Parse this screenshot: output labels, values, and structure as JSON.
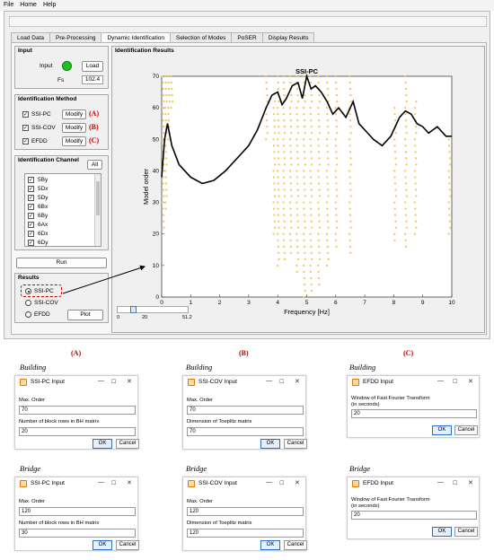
{
  "menu": [
    "File",
    "Home",
    "Help"
  ],
  "tabs": [
    "Load Data",
    "Pre-Processing",
    "Dynamic Identification",
    "Selection of Modes",
    "PoSER",
    "Display Results"
  ],
  "active_tab": 2,
  "input_panel": {
    "title": "Input",
    "input_label": "Input",
    "load_label": "Load",
    "fs_label": "Fs",
    "fs_value": "102.4",
    "status_color": "#22c022"
  },
  "method_panel": {
    "title": "Identification Method",
    "methods": [
      {
        "label": "SSI-PC",
        "modify": "Modify",
        "tag": "(A)"
      },
      {
        "label": "SSI-COV",
        "modify": "Modify",
        "tag": "(B)"
      },
      {
        "label": "EFDD",
        "modify": "Modify",
        "tag": "(C)"
      }
    ]
  },
  "channel_panel": {
    "title": "Identification Channel",
    "all_label": "All",
    "channels": [
      "5By",
      "5Dx",
      "5Dy",
      "6Bx",
      "6By",
      "6Ax",
      "6Dx",
      "6Dy"
    ]
  },
  "run_label": "Run",
  "results_panel": {
    "title": "Results",
    "options": [
      "SSI-PC",
      "SSI-COV",
      "EFDD"
    ],
    "plot_label": "Plot"
  },
  "slider": {
    "min": "0",
    "mid": "20",
    "max": "51.2",
    "value_fraction": 0.19
  },
  "results_area": {
    "title": "Identification Results"
  },
  "chart_data": {
    "type": "scatter",
    "title": "SSI-PC",
    "xlabel": "Frequency [Hz]",
    "ylabel": "Model order",
    "xlim": [
      0,
      10
    ],
    "ylim": [
      0,
      70
    ],
    "xticks": [
      "0",
      "1",
      "2",
      "3",
      "4",
      "5",
      "6",
      "7",
      "8",
      "9",
      "10"
    ],
    "yticks": [
      "0",
      "10",
      "20",
      "30",
      "40",
      "50",
      "60",
      "70"
    ],
    "point_color": "#f5c65a",
    "line_color": "#000000",
    "stable_columns": [
      {
        "x": 0.05,
        "from": 22,
        "to": 70
      },
      {
        "x": 0.15,
        "from": 28,
        "to": 70
      },
      {
        "x": 0.25,
        "from": 50,
        "to": 70
      },
      {
        "x": 0.35,
        "from": 60,
        "to": 70
      },
      {
        "x": 3.62,
        "from": 50,
        "to": 70
      },
      {
        "x": 3.88,
        "from": 20,
        "to": 62
      },
      {
        "x": 4.02,
        "from": 10,
        "to": 70
      },
      {
        "x": 4.22,
        "from": 12,
        "to": 70
      },
      {
        "x": 4.45,
        "from": 14,
        "to": 70
      },
      {
        "x": 4.68,
        "from": 8,
        "to": 70
      },
      {
        "x": 4.92,
        "from": 0,
        "to": 70
      },
      {
        "x": 5.15,
        "from": 2,
        "to": 70
      },
      {
        "x": 5.42,
        "from": 4,
        "to": 70
      },
      {
        "x": 5.72,
        "from": 10,
        "to": 70
      },
      {
        "x": 6.02,
        "from": 16,
        "to": 70
      },
      {
        "x": 6.5,
        "from": 14,
        "to": 70
      },
      {
        "x": 8.05,
        "from": 18,
        "to": 60
      },
      {
        "x": 8.42,
        "from": 16,
        "to": 70
      },
      {
        "x": 8.75,
        "from": 20,
        "to": 62
      },
      {
        "x": 9.92,
        "from": 20,
        "to": 50
      }
    ],
    "stabilization_curve": {
      "x": [
        0,
        0.1,
        0.2,
        0.35,
        0.6,
        1.0,
        1.4,
        1.8,
        2.2,
        2.6,
        3.0,
        3.3,
        3.6,
        3.8,
        4.0,
        4.15,
        4.3,
        4.5,
        4.7,
        4.85,
        5.0,
        5.15,
        5.3,
        5.5,
        5.7,
        5.9,
        6.1,
        6.35,
        6.6,
        6.8,
        7.0,
        7.3,
        7.6,
        7.9,
        8.2,
        8.4,
        8.6,
        8.8,
        9.0,
        9.2,
        9.5,
        9.8,
        10.0
      ],
      "y": [
        38,
        50,
        55,
        48,
        42,
        38,
        36,
        37,
        40,
        44,
        48,
        53,
        60,
        64,
        65,
        61,
        63,
        67,
        68,
        63,
        70,
        66,
        67,
        65,
        62,
        58,
        60,
        57,
        62,
        55,
        53,
        50,
        48,
        51,
        57,
        59,
        58,
        55,
        54,
        52,
        54,
        51,
        51
      ]
    }
  },
  "dialogs": {
    "column_tags": [
      "(A)",
      "(B)",
      "(C)"
    ],
    "sections": [
      "Building",
      "Bridge"
    ],
    "ok_label": "OK",
    "cancel_label": "Cancel",
    "items": [
      {
        "title": "SSI-PC Input",
        "label1": "Max. Order",
        "value1": "70",
        "label2": "Number of block rows in BH matrix",
        "value2": "20"
      },
      {
        "title": "SSI-COV Input",
        "label1": "Max. Order",
        "value1": "70",
        "label2": "Dimension of Toeplitz matrix",
        "value2": "70"
      },
      {
        "title": "EFDD Input",
        "label1": "Window of Fast Fourier Transform",
        "label1b": "(in seconds)",
        "value1": "20"
      },
      {
        "title": "SSI-PC Input",
        "label1": "Max. Order",
        "value1": "120",
        "label2": "Number of block rows in BH matrix",
        "value2": "30"
      },
      {
        "title": "SSI-COV Input",
        "label1": "Max. Order",
        "value1": "120",
        "label2": "Dimension of Toeplitz matrix",
        "value2": "120"
      },
      {
        "title": "EFDD Input",
        "label1": "Window of Fast Fourier Transform",
        "label1b": "(in seconds)",
        "value1": "20"
      }
    ]
  }
}
